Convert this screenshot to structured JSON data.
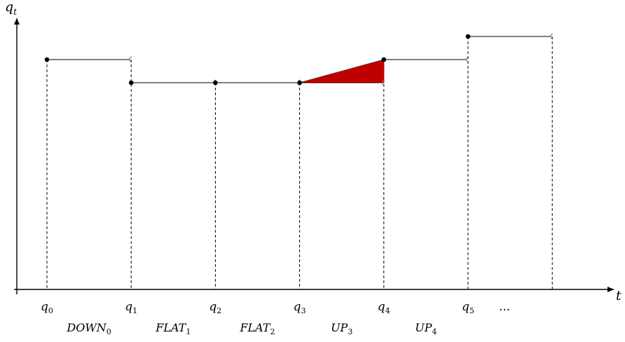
{
  "axes": {
    "y_label": {
      "base": "q",
      "sub": "t"
    },
    "x_label": "t"
  },
  "time_points": [
    {
      "base": "q",
      "sub": "0"
    },
    {
      "base": "q",
      "sub": "1"
    },
    {
      "base": "q",
      "sub": "2"
    },
    {
      "base": "q",
      "sub": "3"
    },
    {
      "base": "q",
      "sub": "4"
    },
    {
      "base": "q",
      "sub": "5"
    }
  ],
  "ellipsis": "...",
  "regions": [
    {
      "base": "DOWN",
      "sub": "0"
    },
    {
      "base": "FLAT",
      "sub": "1"
    },
    {
      "base": "FLAT",
      "sub": "2"
    },
    {
      "base": "UP",
      "sub": "3"
    },
    {
      "base": "UP",
      "sub": "4"
    }
  ],
  "steps": [
    {
      "from": 0,
      "to": 1,
      "level": 3
    },
    {
      "from": 1,
      "to": 2,
      "level": 2
    },
    {
      "from": 2,
      "to": 3,
      "level": 2
    },
    {
      "from": 3,
      "to": 4,
      "level": 2
    },
    {
      "from": 4,
      "to": 5,
      "level": 3
    },
    {
      "from": 5,
      "to": 6,
      "level": 4
    }
  ],
  "shaded_region": {
    "color": "#c00000",
    "vertices": [
      {
        "t": 3,
        "level": 2
      },
      {
        "t": 4,
        "level": 3
      },
      {
        "t": 4,
        "level": 2
      }
    ]
  }
}
